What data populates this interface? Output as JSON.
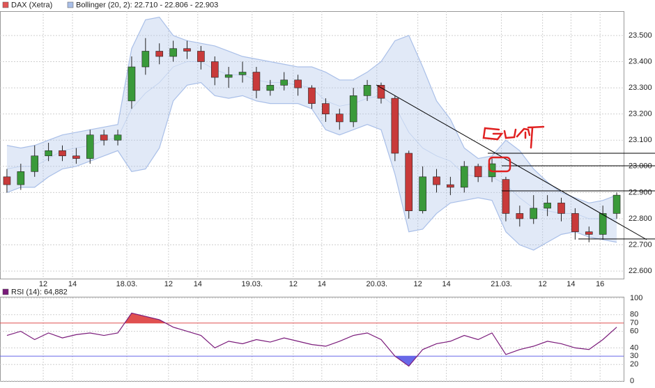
{
  "chart_data": {
    "type": "candlestick",
    "name": "DAX (Xetra)",
    "color": "#e05555",
    "up_color": "#3a9a3a",
    "down_color": "#c83a3a",
    "x": [
      0,
      1,
      2,
      3,
      4,
      5,
      6,
      7,
      8,
      9,
      10,
      11,
      12,
      13,
      14,
      15,
      16,
      17,
      18,
      19,
      20,
      21,
      22,
      23,
      24,
      25,
      26,
      27,
      28,
      29,
      30,
      31,
      32,
      33,
      34,
      35,
      36,
      37,
      38,
      39,
      40,
      41,
      42,
      43,
      44
    ],
    "open": [
      22.96,
      22.93,
      22.98,
      23.04,
      23.06,
      23.04,
      23.03,
      23.12,
      23.1,
      23.25,
      23.38,
      23.44,
      23.42,
      23.45,
      23.44,
      23.4,
      23.34,
      23.35,
      23.36,
      23.29,
      23.31,
      23.33,
      23.3,
      23.24,
      23.2,
      23.17,
      23.27,
      23.31,
      23.26,
      23.05,
      22.83,
      22.96,
      22.93,
      22.92,
      23.0,
      22.96,
      22.95,
      22.82,
      22.8,
      22.84,
      22.86,
      22.82,
      22.75,
      22.74,
      22.82
    ],
    "high": [
      22.99,
      23.01,
      23.08,
      23.09,
      23.08,
      23.07,
      23.14,
      23.14,
      23.14,
      23.42,
      23.49,
      23.47,
      23.48,
      23.48,
      23.46,
      23.42,
      23.38,
      23.4,
      23.38,
      23.33,
      23.36,
      23.35,
      23.31,
      23.26,
      23.22,
      23.3,
      23.33,
      23.32,
      23.27,
      23.06,
      23.0,
      22.99,
      22.96,
      23.02,
      23.01,
      23.03,
      22.96,
      22.85,
      22.89,
      22.89,
      22.88,
      22.84,
      22.77,
      22.85,
      22.9
    ],
    "low": [
      22.9,
      22.91,
      22.96,
      23.02,
      23.02,
      23.01,
      23.01,
      23.08,
      23.08,
      23.22,
      23.35,
      23.39,
      23.4,
      23.41,
      23.37,
      23.31,
      23.3,
      23.32,
      23.26,
      23.27,
      23.29,
      23.27,
      23.22,
      23.17,
      23.14,
      23.15,
      23.25,
      23.24,
      23.02,
      22.8,
      22.82,
      22.9,
      22.89,
      22.9,
      22.94,
      22.94,
      22.79,
      22.77,
      22.78,
      22.81,
      22.79,
      22.72,
      22.71,
      22.72,
      22.8
    ],
    "close": [
      22.93,
      22.98,
      23.04,
      23.06,
      23.04,
      23.03,
      23.12,
      23.1,
      23.12,
      23.38,
      23.44,
      23.42,
      23.45,
      23.44,
      23.4,
      23.34,
      23.35,
      23.36,
      23.29,
      23.31,
      23.33,
      23.3,
      23.24,
      23.2,
      23.17,
      23.27,
      23.31,
      23.26,
      23.05,
      22.83,
      22.96,
      22.93,
      22.92,
      23.0,
      22.96,
      23.01,
      22.82,
      22.8,
      22.84,
      22.86,
      22.82,
      22.75,
      22.74,
      22.82,
      22.89
    ],
    "bollinger": {
      "name": "Bollinger (20, 2): 22.710 - 22.806 - 22.903",
      "color": "#a9bfe8",
      "upper": [
        23.08,
        23.07,
        23.08,
        23.1,
        23.12,
        23.13,
        23.14,
        23.15,
        23.16,
        23.45,
        23.56,
        23.57,
        23.5,
        23.48,
        23.47,
        23.46,
        23.44,
        23.42,
        23.41,
        23.4,
        23.39,
        23.38,
        23.38,
        23.36,
        23.33,
        23.33,
        23.36,
        23.4,
        23.48,
        23.5,
        23.38,
        23.25,
        23.18,
        23.07,
        23.03,
        23.04,
        23.1,
        23.06,
        22.99,
        22.94,
        22.9,
        22.88,
        22.86,
        22.87,
        22.89
      ],
      "middle": [
        22.99,
        23.0,
        23.0,
        23.03,
        23.06,
        23.07,
        23.08,
        23.1,
        23.11,
        23.22,
        23.28,
        23.32,
        23.38,
        23.4,
        23.4,
        23.37,
        23.35,
        23.35,
        23.33,
        23.32,
        23.32,
        23.31,
        23.3,
        23.25,
        23.23,
        23.24,
        23.26,
        23.27,
        23.23,
        23.13,
        23.07,
        23.04,
        23.02,
        22.97,
        22.96,
        22.96,
        22.93,
        22.88,
        22.84,
        22.83,
        22.82,
        22.82,
        22.8,
        22.8,
        22.8
      ],
      "lower": [
        22.9,
        22.92,
        22.92,
        22.96,
        22.99,
        23.0,
        23.02,
        23.04,
        23.06,
        22.98,
        22.99,
        23.07,
        23.25,
        23.31,
        23.32,
        23.27,
        23.26,
        23.27,
        23.25,
        23.24,
        23.24,
        23.24,
        23.22,
        23.14,
        23.12,
        23.14,
        23.16,
        23.14,
        22.97,
        22.75,
        22.76,
        22.82,
        22.86,
        22.87,
        22.88,
        22.87,
        22.75,
        22.7,
        22.68,
        22.71,
        22.74,
        22.75,
        22.73,
        22.72,
        22.71
      ]
    },
    "xlim": [
      -0.5,
      44.5
    ],
    "xticks": [
      {
        "value": 2.62,
        "label": "12"
      },
      {
        "value": 4.73,
        "label": "14"
      },
      {
        "value": 8.65,
        "label": "18.03."
      },
      {
        "value": 11.66,
        "label": "12"
      },
      {
        "value": 13.77,
        "label": "14"
      },
      {
        "value": 17.69,
        "label": "19.03."
      },
      {
        "value": 20.66,
        "label": "12"
      },
      {
        "value": 22.72,
        "label": "14"
      },
      {
        "value": 26.69,
        "label": "20.03."
      },
      {
        "value": 29.65,
        "label": "12"
      },
      {
        "value": 31.71,
        "label": "14"
      },
      {
        "value": 35.68,
        "label": "21.03."
      },
      {
        "value": 38.65,
        "label": "12"
      },
      {
        "value": 40.7,
        "label": "14"
      },
      {
        "value": 42.8,
        "label": "16"
      }
    ],
    "ylim": [
      22.571,
      23.593
    ],
    "yticks": [
      {
        "value": 22.6,
        "label": "22.600"
      },
      {
        "value": 22.7,
        "label": "22.700"
      },
      {
        "value": 22.8,
        "label": "22.800"
      },
      {
        "value": 22.9,
        "label": "22.900"
      },
      {
        "value": 23.0,
        "label": "23.000"
      },
      {
        "value": 23.1,
        "label": "23.100"
      },
      {
        "value": 23.2,
        "label": "23.200"
      },
      {
        "value": 23.3,
        "label": "23.300"
      },
      {
        "value": 23.4,
        "label": "23.400"
      },
      {
        "value": 23.5,
        "label": "23.500"
      }
    ],
    "grid": true,
    "rsi": {
      "name": "RSI (14): 64,882",
      "color": "#7a1a7a",
      "values": [
        55,
        60,
        50,
        58,
        52,
        56,
        58,
        55,
        58,
        82,
        78,
        74,
        65,
        60,
        55,
        40,
        48,
        45,
        50,
        47,
        52,
        48,
        44,
        42,
        48,
        55,
        58,
        50,
        30,
        18,
        38,
        45,
        48,
        55,
        50,
        58,
        32,
        38,
        42,
        48,
        45,
        40,
        38,
        50,
        65
      ],
      "ylim": [
        0,
        100
      ],
      "yticks": [
        0,
        20,
        40,
        60,
        80,
        100
      ],
      "overbought": 70,
      "overbought_color": "#e05050",
      "oversold": 30,
      "oversold_color": "#6868e8"
    }
  }
}
